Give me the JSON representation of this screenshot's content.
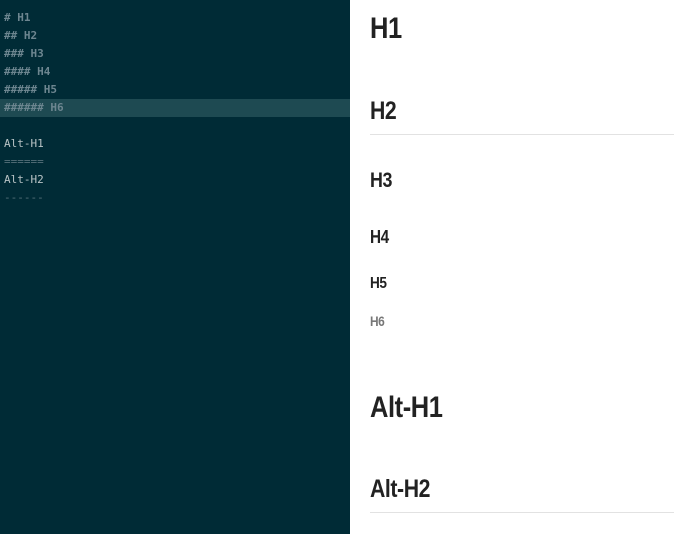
{
  "editor": {
    "lines": [
      "# H1",
      "## H2",
      "### H3",
      "#### H4",
      "##### H5",
      "###### H6",
      "",
      "Alt-H1",
      "======",
      "Alt-H2",
      "------"
    ],
    "active_line": 6
  },
  "preview": {
    "h1": "H1",
    "h2": "H2",
    "h3": "H3",
    "h4": "H4",
    "h5": "H5",
    "h6": "H6",
    "alt_h1": "Alt-H1",
    "alt_h2": "Alt-H2"
  },
  "colors": {
    "editor_background": "#002b36",
    "active_line": "#1e4a52",
    "heading_markdown": "#6d8690",
    "plain_text": "#b9c4c6",
    "preview_text": "#222222",
    "h6_text": "#777777"
  }
}
